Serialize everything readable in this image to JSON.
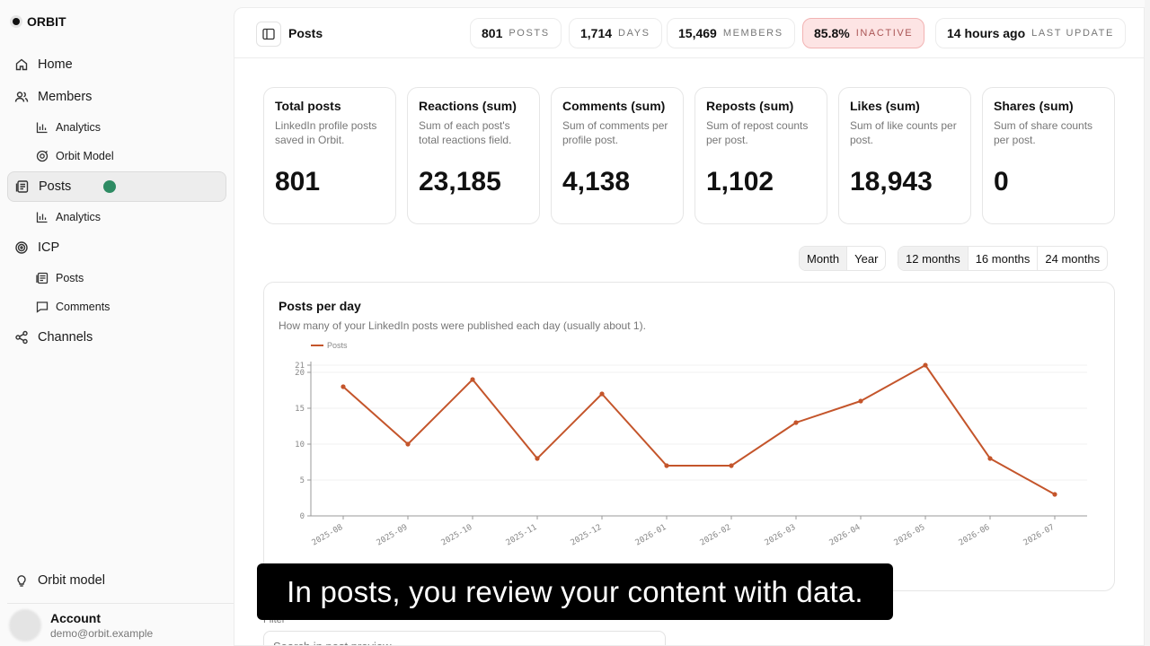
{
  "sidebar": {
    "brand": "ORBIT",
    "items": [
      {
        "label": "Home",
        "icon": "home-icon"
      },
      {
        "label": "Members",
        "icon": "users-icon"
      },
      {
        "label": "Analytics",
        "icon": "bar-chart-icon"
      },
      {
        "label": "Orbit Model",
        "icon": "target-icon"
      },
      {
        "label": "Posts",
        "icon": "document-icon"
      },
      {
        "label": "Analytics",
        "icon": "bar-chart-icon"
      },
      {
        "label": "ICP",
        "icon": "crosshair-icon"
      },
      {
        "label": "Posts",
        "icon": "document-icon"
      },
      {
        "label": "Comments",
        "icon": "comment-icon"
      },
      {
        "label": "Channels",
        "icon": "share-icon"
      }
    ],
    "orbit_model": "Orbit model",
    "account": {
      "name": "Account",
      "email": "demo@orbit.example"
    }
  },
  "topbar": {
    "title": "Posts",
    "stats": [
      {
        "value": "801",
        "label": "POSTS"
      },
      {
        "value": "1,714",
        "label": "DAYS"
      },
      {
        "value": "15,469",
        "label": "MEMBERS"
      },
      {
        "value": "85.8%",
        "label": "INACTIVE"
      },
      {
        "value": "14 hours ago",
        "label": "LAST UPDATE"
      }
    ]
  },
  "cards": [
    {
      "title": "Total posts",
      "desc": "LinkedIn profile posts saved in Orbit.",
      "value": "801"
    },
    {
      "title": "Reactions (sum)",
      "desc": "Sum of each post's total reactions field.",
      "value": "23,185"
    },
    {
      "title": "Comments (sum)",
      "desc": "Sum of comments per profile post.",
      "value": "4,138"
    },
    {
      "title": "Reposts (sum)",
      "desc": "Sum of repost counts per post.",
      "value": "1,102"
    },
    {
      "title": "Likes (sum)",
      "desc": "Sum of like counts per post.",
      "value": "18,943"
    },
    {
      "title": "Shares (sum)",
      "desc": "Sum of share counts per post.",
      "value": "0"
    }
  ],
  "granularity": {
    "options": [
      "Month",
      "Year"
    ],
    "selected": "Month"
  },
  "range": {
    "options": [
      "12 months",
      "16 months",
      "24 months"
    ],
    "selected": "12 months"
  },
  "chart": {
    "title": "Posts per day",
    "subtitle": "How many of your LinkedIn posts were published each day (usually about 1)."
  },
  "chart_data": {
    "type": "line",
    "x": [
      "2025-08",
      "2025-09",
      "2025-10",
      "2025-11",
      "2025-12",
      "2026-01",
      "2026-02",
      "2026-03",
      "2026-04",
      "2026-05",
      "2026-06",
      "2026-07"
    ],
    "series": [
      {
        "name": "Posts",
        "values": [
          18,
          10,
          19,
          8,
          17,
          7,
          7,
          13,
          16,
          21,
          8,
          3
        ]
      }
    ],
    "yticks": [
      0,
      5,
      10,
      15,
      20,
      21
    ],
    "ylim": [
      0,
      21
    ],
    "grid": true,
    "legend": "top-left",
    "color": "#c4552b"
  },
  "filter": {
    "label": "Filter",
    "placeholder": "Search in post preview"
  },
  "caption": "In posts, you review your content with data."
}
